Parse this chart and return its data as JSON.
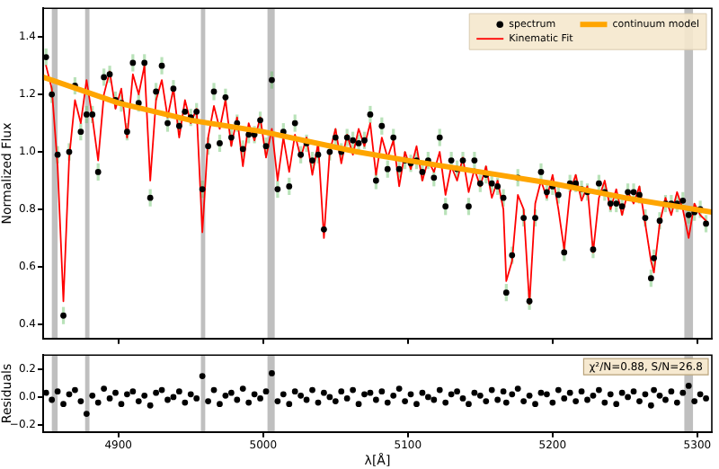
{
  "chart_data": [
    {
      "type": "scatter",
      "ylabel": "Normalized Flux",
      "tick_labels": "y",
      "legend": "top right",
      "x": [
        4850,
        4854,
        4858,
        4862,
        4866,
        4870,
        4874,
        4878,
        4882,
        4886,
        4890,
        4894,
        4898,
        4902,
        4906,
        4910,
        4914,
        4918,
        4922,
        4926,
        4930,
        4934,
        4938,
        4942,
        4946,
        4950,
        4954,
        4958,
        4962,
        4966,
        4970,
        4974,
        4978,
        4982,
        4986,
        4990,
        4994,
        4998,
        5002,
        5006,
        5010,
        5014,
        5018,
        5022,
        5026,
        5030,
        5034,
        5038,
        5042,
        5046,
        5050,
        5054,
        5058,
        5062,
        5066,
        5070,
        5074,
        5078,
        5082,
        5086,
        5090,
        5094,
        5098,
        5102,
        5106,
        5110,
        5114,
        5118,
        5122,
        5126,
        5130,
        5134,
        5138,
        5142,
        5146,
        5150,
        5154,
        5158,
        5162,
        5166,
        5168,
        5172,
        5176,
        5180,
        5184,
        5188,
        5192,
        5196,
        5200,
        5204,
        5208,
        5212,
        5216,
        5220,
        5224,
        5228,
        5232,
        5236,
        5240,
        5244,
        5248,
        5252,
        5256,
        5260,
        5264,
        5268,
        5270,
        5274,
        5278,
        5282,
        5286,
        5290,
        5294,
        5298,
        5302,
        5306
      ],
      "series": [
        {
          "name": "spectrum",
          "marker": "circle",
          "color": "#000000",
          "values": [
            1.33,
            1.2,
            0.99,
            0.43,
            1.0,
            1.23,
            1.07,
            1.13,
            1.13,
            0.93,
            1.26,
            1.27,
            1.18,
            1.17,
            1.07,
            1.31,
            1.17,
            1.31,
            0.84,
            1.21,
            1.3,
            1.1,
            1.22,
            1.09,
            1.14,
            1.12,
            1.14,
            0.87,
            1.02,
            1.21,
            1.03,
            1.19,
            1.05,
            1.1,
            1.01,
            1.06,
            1.06,
            1.11,
            1.02,
            1.25,
            0.87,
            1.07,
            0.88,
            1.1,
            0.99,
            1.03,
            0.97,
            0.99,
            0.73,
            1.0,
            1.05,
            1.0,
            1.05,
            1.04,
            1.03,
            1.04,
            1.13,
            0.9,
            1.09,
            0.94,
            1.05,
            0.94,
            0.97,
            0.96,
            0.97,
            0.93,
            0.97,
            0.91,
            1.05,
            0.81,
            0.97,
            0.94,
            0.97,
            0.81,
            0.97,
            0.89,
            0.92,
            0.89,
            0.88,
            0.84,
            0.51,
            0.64,
            0.91,
            0.77,
            0.48,
            0.77,
            0.93,
            0.86,
            0.88,
            0.85,
            0.65,
            0.89,
            0.89,
            0.87,
            0.86,
            0.66,
            0.89,
            0.86,
            0.82,
            0.82,
            0.81,
            0.86,
            0.86,
            0.85,
            0.77,
            0.56,
            0.63,
            0.76,
            0.82,
            0.82,
            0.82,
            0.83,
            0.78,
            0.79,
            0.8,
            0.75
          ],
          "errors": [
            0.03,
            0.03,
            0.03,
            0.03,
            0.03,
            0.03,
            0.03,
            0.03,
            0.03,
            0.03,
            0.03,
            0.03,
            0.03,
            0.03,
            0.03,
            0.03,
            0.03,
            0.03,
            0.03,
            0.03,
            0.03,
            0.03,
            0.03,
            0.03,
            null,
            0.03,
            0.03,
            0.03,
            0.03,
            0.03,
            0.03,
            0.03,
            0.03,
            0.03,
            0.03,
            0.03,
            0.03,
            0.03,
            0.03,
            0.03,
            0.03,
            0.03,
            0.03,
            0.03,
            0.03,
            0.03,
            0.03,
            0.03,
            null,
            0.03,
            0.03,
            0.03,
            0.03,
            0.03,
            0.03,
            0.03,
            0.03,
            0.03,
            0.03,
            0.03,
            0.03,
            0.03,
            0.03,
            0.03,
            0.03,
            0.03,
            0.03,
            0.03,
            0.03,
            0.03,
            0.03,
            0.03,
            0.03,
            0.03,
            0.03,
            0.03,
            0.03,
            0.03,
            0.03,
            0.03,
            0.03,
            0.03,
            0.03,
            0.03,
            0.03,
            0.03,
            0.03,
            0.03,
            0.03,
            0.03,
            0.03,
            0.03,
            0.03,
            0.03,
            0.03,
            0.03,
            0.03,
            0.03,
            0.03,
            0.03,
            0.03,
            0.03,
            0.03,
            0.03,
            0.03,
            0.03,
            0.03,
            0.03,
            0.03,
            0.03,
            0.03,
            0.03,
            0.03,
            0.03,
            0.03,
            0.03
          ]
        },
        {
          "name": "Kinematic Fit",
          "type": "line",
          "marker": "none",
          "color": "#ff0000",
          "values": [
            1.3,
            1.22,
            0.95,
            0.48,
            0.98,
            1.18,
            1.1,
            1.25,
            1.12,
            0.97,
            1.2,
            1.28,
            1.15,
            1.22,
            1.05,
            1.27,
            1.2,
            1.3,
            0.9,
            1.18,
            1.25,
            1.12,
            1.22,
            1.05,
            1.18,
            1.1,
            1.15,
            0.72,
            1.05,
            1.16,
            1.08,
            1.18,
            1.02,
            1.12,
            0.95,
            1.1,
            1.04,
            1.12,
            0.98,
            1.08,
            0.9,
            1.05,
            0.93,
            1.06,
            0.98,
            1.05,
            0.92,
            1.03,
            0.7,
            1.0,
            1.08,
            0.96,
            1.06,
            0.99,
            1.08,
            1.02,
            1.1,
            0.92,
            1.05,
            0.98,
            1.04,
            0.88,
            1.0,
            0.94,
            1.02,
            0.9,
            0.97,
            0.93,
            1.0,
            0.85,
            0.95,
            0.9,
            0.98,
            0.86,
            0.94,
            0.88,
            0.95,
            0.84,
            0.9,
            0.8,
            0.55,
            0.62,
            0.85,
            0.8,
            0.47,
            0.82,
            0.9,
            0.84,
            0.92,
            0.8,
            0.66,
            0.86,
            0.92,
            0.83,
            0.88,
            0.65,
            0.84,
            0.9,
            0.8,
            0.87,
            0.78,
            0.86,
            0.82,
            0.88,
            0.75,
            0.62,
            0.58,
            0.75,
            0.84,
            0.78,
            0.86,
            0.8,
            0.7,
            0.82,
            0.78,
            0.76
          ]
        },
        {
          "name": "continuum model",
          "type": "line",
          "marker": "none",
          "color": "#ffa500",
          "x": [
            4848,
            4900,
            4950,
            5000,
            5065,
            5100,
            5150,
            5200,
            5250,
            5310
          ],
          "values": [
            1.26,
            1.17,
            1.11,
            1.07,
            1.0,
            0.97,
            0.93,
            0.89,
            0.84,
            0.79
          ]
        }
      ],
      "xlim": [
        4848,
        5310
      ],
      "xticks": [
        4900,
        5000,
        5100,
        5200,
        5300
      ],
      "ylim": [
        0.35,
        1.5
      ],
      "yticks": [
        0.4,
        0.6,
        0.8,
        {
          "value": 1.0,
          "label": "1.0"
        },
        1.2,
        1.4
      ],
      "bands": [
        {
          "axis": "x",
          "from": 4854,
          "to": 4858,
          "color": "#bfbfbf"
        },
        {
          "axis": "x",
          "from": 4877,
          "to": 4880,
          "color": "#bfbfbf"
        },
        {
          "axis": "x",
          "from": 4957,
          "to": 4960,
          "color": "#bfbfbf"
        },
        {
          "axis": "x",
          "from": 5003,
          "to": 5008,
          "color": "#bfbfbf"
        },
        {
          "axis": "x",
          "from": 5291,
          "to": 5297,
          "color": "#bfbfbf"
        }
      ]
    },
    {
      "type": "scatter",
      "ylabel": "Residuals",
      "xlabel": "λ[Å]",
      "marker": "circle",
      "x": [
        4850,
        4854,
        4858,
        4862,
        4866,
        4870,
        4874,
        4878,
        4882,
        4886,
        4890,
        4894,
        4898,
        4902,
        4906,
        4910,
        4914,
        4918,
        4922,
        4926,
        4930,
        4934,
        4938,
        4942,
        4946,
        4950,
        4954,
        4958,
        4962,
        4966,
        4970,
        4974,
        4978,
        4982,
        4986,
        4990,
        4994,
        4998,
        5002,
        5006,
        5010,
        5014,
        5018,
        5022,
        5026,
        5030,
        5034,
        5038,
        5042,
        5046,
        5050,
        5054,
        5058,
        5062,
        5066,
        5070,
        5074,
        5078,
        5082,
        5086,
        5090,
        5094,
        5098,
        5102,
        5106,
        5110,
        5114,
        5118,
        5122,
        5126,
        5130,
        5134,
        5138,
        5142,
        5146,
        5150,
        5154,
        5158,
        5162,
        5166,
        5168,
        5172,
        5176,
        5180,
        5184,
        5188,
        5192,
        5196,
        5200,
        5204,
        5208,
        5212,
        5216,
        5220,
        5224,
        5228,
        5232,
        5236,
        5240,
        5244,
        5248,
        5252,
        5256,
        5260,
        5264,
        5268,
        5270,
        5274,
        5278,
        5282,
        5286,
        5290,
        5294,
        5298,
        5302,
        5306
      ],
      "series": [
        {
          "color": "#000000",
          "values": [
            0.03,
            -0.02,
            0.04,
            -0.05,
            0.02,
            0.05,
            -0.03,
            -0.12,
            0.01,
            -0.04,
            0.06,
            -0.01,
            0.03,
            -0.05,
            0.02,
            0.04,
            -0.03,
            0.01,
            -0.06,
            0.03,
            0.05,
            -0.02,
            0.0,
            0.04,
            -0.04,
            0.02,
            -0.01,
            0.15,
            -0.03,
            0.05,
            -0.05,
            0.01,
            0.03,
            -0.02,
            0.06,
            -0.04,
            0.02,
            -0.01,
            0.04,
            0.17,
            -0.03,
            0.02,
            -0.05,
            0.04,
            0.01,
            -0.02,
            0.05,
            -0.04,
            0.03,
            0.0,
            -0.03,
            0.04,
            -0.01,
            0.05,
            -0.05,
            0.02,
            0.03,
            -0.02,
            0.04,
            -0.04,
            0.01,
            0.06,
            -0.03,
            0.02,
            -0.05,
            0.03,
            0.0,
            -0.02,
            0.05,
            -0.04,
            0.02,
            0.04,
            -0.01,
            -0.05,
            0.03,
            0.01,
            -0.03,
            0.05,
            -0.02,
            0.04,
            -0.04,
            0.02,
            0.06,
            -0.03,
            0.01,
            -0.05,
            0.03,
            0.02,
            -0.04,
            0.05,
            -0.01,
            0.03,
            -0.03,
            0.04,
            -0.02,
            0.01,
            0.05,
            -0.04,
            0.02,
            -0.05,
            0.03,
            0.0,
            0.04,
            -0.03,
            0.02,
            -0.06,
            0.05,
            0.01,
            -0.02,
            0.04,
            -0.04,
            0.03,
            0.08,
            -0.03,
            0.02,
            -0.01
          ]
        }
      ],
      "xlim": [
        4848,
        5310
      ],
      "xticks": [
        4900,
        5000,
        5100,
        5200,
        5300
      ],
      "ylim": [
        -0.25,
        0.3
      ],
      "yticks": [
        {
          "value": -0.2,
          "label": "−0.2"
        },
        {
          "value": 0,
          "label": "0.0"
        },
        0.2
      ],
      "annotations": [
        "χ²/N=0.88, S/N=26.8"
      ],
      "bands": [
        {
          "axis": "x",
          "from": 4854,
          "to": 4858,
          "color": "#bfbfbf"
        },
        {
          "axis": "x",
          "from": 4877,
          "to": 4880,
          "color": "#bfbfbf"
        },
        {
          "axis": "x",
          "from": 4957,
          "to": 4960,
          "color": "#bfbfbf"
        },
        {
          "axis": "x",
          "from": 5003,
          "to": 5008,
          "color": "#bfbfbf"
        },
        {
          "axis": "x",
          "from": 5291,
          "to": 5297,
          "color": "#bfbfbf"
        }
      ]
    }
  ]
}
